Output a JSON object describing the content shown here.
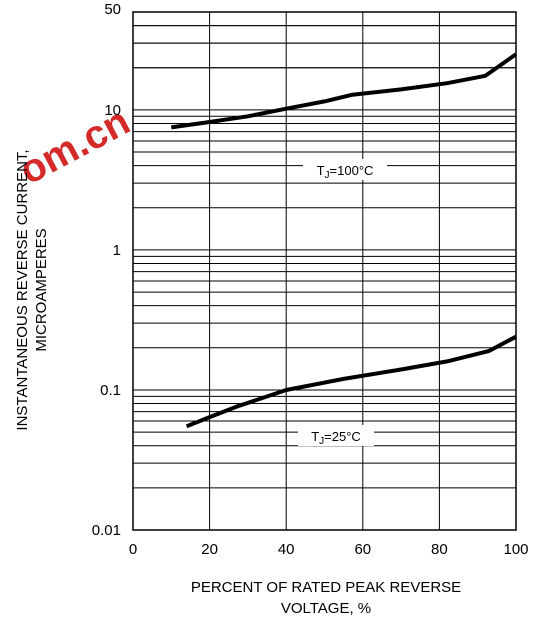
{
  "chart_data": {
    "type": "line",
    "xlabel_lines": [
      "PERCENT OF RATED PEAK REVERSE",
      "VOLTAGE, %"
    ],
    "ylabel_lines": [
      "INSTANTANEOUS REVERSE CURRENT,",
      "MICROAMPERES"
    ],
    "xlim": [
      0,
      100
    ],
    "ylim": [
      0.01,
      50
    ],
    "yscale": "log",
    "x_ticks": [
      "0",
      "20",
      "40",
      "60",
      "80",
      "100"
    ],
    "y_ticks": [
      {
        "value": 0.01,
        "label": "0.01"
      },
      {
        "value": 0.1,
        "label": "0.1"
      },
      {
        "value": 1,
        "label": "1"
      },
      {
        "value": 10,
        "label": "10"
      },
      {
        "value": 50,
        "label": "50"
      }
    ],
    "grid": true,
    "series": [
      {
        "label_main": "T",
        "label_sub": "J",
        "label_rest": "=100°C",
        "x": [
          10,
          20,
          30,
          40,
          50,
          57,
          70,
          82,
          92,
          100
        ],
        "y": [
          7.5,
          8.2,
          9.0,
          10.2,
          11.5,
          12.8,
          14.0,
          15.5,
          17.5,
          25.0
        ]
      },
      {
        "label_main": "T",
        "label_sub": "J",
        "label_rest": "=25°C",
        "x": [
          14,
          20,
          27,
          40,
          55,
          70,
          82,
          93,
          100
        ],
        "y": [
          0.055,
          0.064,
          0.076,
          0.1,
          0.12,
          0.14,
          0.16,
          0.19,
          0.24
        ]
      }
    ]
  },
  "watermark": {
    "text": "om.cn",
    "color": "#d31f1f"
  }
}
